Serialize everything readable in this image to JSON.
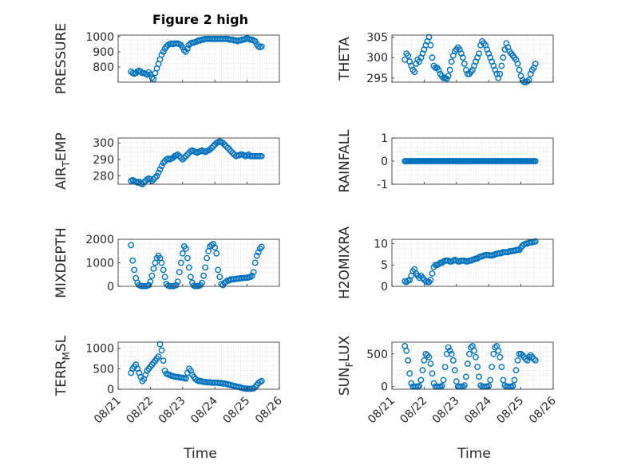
{
  "figure": {
    "title": "Figure 2 high"
  },
  "colors": {
    "marker": "#0072BD",
    "grid": "#d0d0d0",
    "axis": "#262626"
  },
  "chart_data": [
    {
      "type": "scatter",
      "ylabel": "PRESSURE",
      "ylim": [
        700,
        1010
      ],
      "yticks": [
        800,
        900,
        1000
      ],
      "xlim": [
        0,
        5
      ],
      "xticks": [
        "08/21",
        "08/22",
        "08/23",
        "08/24",
        "08/25",
        "08/26"
      ],
      "grid": true,
      "x": [
        0.4,
        0.45,
        0.5,
        0.55,
        0.6,
        0.65,
        0.7,
        0.75,
        0.8,
        0.85,
        0.9,
        0.95,
        1.0,
        1.05,
        1.1,
        1.15,
        1.2,
        1.25,
        1.3,
        1.35,
        1.4,
        1.45,
        1.5,
        1.55,
        1.6,
        1.65,
        1.7,
        1.75,
        1.8,
        1.85,
        1.9,
        1.95,
        2.0,
        2.05,
        2.1,
        2.15,
        2.2,
        2.25,
        2.3,
        2.35,
        2.4,
        2.45,
        2.5,
        2.55,
        2.6,
        2.65,
        2.7,
        2.75,
        2.8,
        2.85,
        2.9,
        2.95,
        3.0,
        3.05,
        3.1,
        3.15,
        3.2,
        3.25,
        3.3,
        3.35,
        3.4,
        3.45,
        3.5,
        3.55,
        3.6,
        3.65,
        3.7,
        3.75,
        3.8,
        3.85,
        3.9,
        3.95,
        4.0,
        4.05,
        4.1,
        4.15,
        4.2,
        4.25,
        4.3,
        4.35,
        4.4,
        4.45
      ],
      "y": [
        770,
        760,
        755,
        760,
        770,
        775,
        770,
        760,
        760,
        755,
        750,
        765,
        750,
        730,
        720,
        760,
        790,
        820,
        850,
        880,
        900,
        920,
        935,
        945,
        950,
        955,
        950,
        955,
        955,
        955,
        950,
        945,
        930,
        910,
        900,
        920,
        945,
        955,
        960,
        960,
        965,
        970,
        975,
        975,
        980,
        980,
        985,
        985,
        985,
        985,
        985,
        985,
        985,
        985,
        985,
        985,
        985,
        985,
        985,
        985,
        985,
        980,
        980,
        980,
        975,
        975,
        970,
        975,
        975,
        980,
        980,
        985,
        990,
        985,
        980,
        980,
        975,
        970,
        950,
        935,
        930,
        935
      ]
    },
    {
      "type": "scatter",
      "ylabel": "THETA",
      "ylim": [
        294,
        305.5
      ],
      "yticks": [
        295,
        300,
        305
      ],
      "xlim": [
        0,
        5
      ],
      "xticks": [
        "08/21",
        "08/22",
        "08/23",
        "08/24",
        "08/25",
        "08/26"
      ],
      "grid": true,
      "x": [
        0.4,
        0.45,
        0.5,
        0.55,
        0.6,
        0.65,
        0.7,
        0.75,
        0.8,
        0.85,
        0.9,
        0.95,
        1.0,
        1.05,
        1.1,
        1.15,
        1.2,
        1.25,
        1.3,
        1.35,
        1.4,
        1.45,
        1.5,
        1.55,
        1.6,
        1.65,
        1.7,
        1.75,
        1.8,
        1.85,
        1.9,
        1.95,
        2.0,
        2.05,
        2.1,
        2.15,
        2.2,
        2.25,
        2.3,
        2.35,
        2.4,
        2.45,
        2.5,
        2.55,
        2.6,
        2.65,
        2.7,
        2.75,
        2.8,
        2.85,
        2.9,
        2.95,
        3.0,
        3.05,
        3.1,
        3.15,
        3.2,
        3.25,
        3.3,
        3.35,
        3.4,
        3.45,
        3.5,
        3.55,
        3.6,
        3.65,
        3.7,
        3.75,
        3.8,
        3.85,
        3.9,
        3.95,
        4.0,
        4.05,
        4.1,
        4.15,
        4.2,
        4.25,
        4.3,
        4.35,
        4.4,
        4.45
      ],
      "y": [
        299.5,
        301,
        300.5,
        299,
        298,
        297,
        296.5,
        298.5,
        299.5,
        299,
        300,
        301,
        302,
        303,
        304,
        305,
        303,
        300,
        298,
        297.5,
        297.5,
        297,
        296,
        295.5,
        295,
        295,
        294.8,
        295.5,
        297,
        299,
        300.5,
        301.5,
        302,
        302.5,
        302,
        301,
        300,
        298.5,
        297,
        296,
        296,
        296.5,
        297,
        298,
        299,
        300,
        301,
        303,
        304,
        303.5,
        303,
        302,
        301,
        300,
        299,
        298,
        297,
        296,
        295,
        296,
        298,
        300,
        302,
        303.5,
        302.5,
        301.5,
        301,
        300.5,
        300,
        299.5,
        298.5,
        297,
        295.5,
        294.5,
        294,
        294,
        294.2,
        294.5,
        296,
        297,
        297.5,
        298.5
      ]
    },
    {
      "type": "scatter",
      "ylabel": "AIR_TEMP",
      "ylim": [
        275,
        303
      ],
      "yticks": [
        280,
        290,
        300
      ],
      "xlim": [
        0,
        5
      ],
      "xticks": [
        "08/21",
        "08/22",
        "08/23",
        "08/24",
        "08/25",
        "08/26"
      ],
      "grid": true,
      "x": [
        0.4,
        0.45,
        0.5,
        0.55,
        0.6,
        0.65,
        0.7,
        0.75,
        0.8,
        0.85,
        0.9,
        0.95,
        1.0,
        1.05,
        1.1,
        1.15,
        1.2,
        1.25,
        1.3,
        1.35,
        1.4,
        1.45,
        1.5,
        1.55,
        1.6,
        1.65,
        1.7,
        1.75,
        1.8,
        1.85,
        1.9,
        1.95,
        2.0,
        2.05,
        2.1,
        2.15,
        2.2,
        2.25,
        2.3,
        2.35,
        2.4,
        2.45,
        2.5,
        2.55,
        2.6,
        2.65,
        2.7,
        2.75,
        2.8,
        2.85,
        2.9,
        2.95,
        3.0,
        3.05,
        3.1,
        3.15,
        3.2,
        3.25,
        3.3,
        3.35,
        3.4,
        3.45,
        3.5,
        3.55,
        3.6,
        3.65,
        3.7,
        3.75,
        3.8,
        3.85,
        3.9,
        3.95,
        4.0,
        4.05,
        4.1,
        4.15,
        4.2,
        4.25,
        4.3,
        4.35,
        4.4,
        4.45
      ],
      "y": [
        277,
        277.5,
        277,
        276.5,
        276,
        276.5,
        275.5,
        275,
        276,
        277,
        278,
        278.5,
        278,
        277,
        278,
        279,
        280,
        282,
        284,
        286,
        288,
        289,
        290,
        290.5,
        290,
        290.5,
        291,
        292,
        292.5,
        293,
        292,
        291,
        290,
        291,
        292,
        293,
        294,
        295,
        295.5,
        295,
        294.5,
        294,
        294.5,
        295,
        295.5,
        295,
        294.5,
        295,
        295.5,
        296,
        297,
        298,
        299,
        300,
        300.5,
        301,
        300.5,
        300,
        299,
        298,
        297,
        296,
        295,
        294,
        293,
        292,
        292.5,
        292.5,
        293,
        293,
        292.5,
        292,
        292.5,
        293,
        292,
        292,
        292,
        292,
        292,
        292,
        292,
        292
      ]
    },
    {
      "type": "scatter",
      "ylabel": "RAINFALL",
      "ylim": [
        -1,
        1
      ],
      "yticks": [
        -1,
        0,
        1
      ],
      "xlim": [
        0,
        5
      ],
      "xticks": [
        "08/21",
        "08/22",
        "08/23",
        "08/24",
        "08/25",
        "08/26"
      ],
      "grid": true,
      "x_start": 0.4,
      "x_end": 4.45,
      "count": 100,
      "value": 0
    },
    {
      "type": "scatter",
      "ylabel": "MIXDEPTH",
      "ylim": [
        0,
        2000
      ],
      "yticks": [
        0,
        1000,
        2000
      ],
      "xlim": [
        0,
        5
      ],
      "xticks": [
        "08/21",
        "08/22",
        "08/23",
        "08/24",
        "08/25",
        "08/26"
      ],
      "grid": true,
      "x": [
        0.4,
        0.45,
        0.5,
        0.55,
        0.6,
        0.65,
        0.7,
        0.75,
        0.8,
        0.85,
        0.9,
        0.95,
        1.0,
        1.05,
        1.1,
        1.15,
        1.2,
        1.25,
        1.3,
        1.35,
        1.4,
        1.45,
        1.5,
        1.55,
        1.6,
        1.65,
        1.7,
        1.75,
        1.8,
        1.85,
        1.9,
        1.95,
        2.0,
        2.05,
        2.1,
        2.15,
        2.2,
        2.25,
        2.3,
        2.35,
        2.4,
        2.45,
        2.5,
        2.55,
        2.6,
        2.65,
        2.7,
        2.75,
        2.8,
        2.85,
        2.9,
        2.95,
        3.0,
        3.05,
        3.1,
        3.15,
        3.2,
        3.25,
        3.3,
        3.35,
        3.4,
        3.45,
        3.5,
        3.55,
        3.6,
        3.65,
        3.7,
        3.75,
        3.8,
        3.85,
        3.9,
        3.95,
        4.0,
        4.05,
        4.1,
        4.15,
        4.2,
        4.25,
        4.3,
        4.35,
        4.4,
        4.45
      ],
      "y": [
        1750,
        1100,
        700,
        350,
        150,
        50,
        20,
        10,
        10,
        10,
        20,
        50,
        200,
        450,
        750,
        1000,
        1200,
        1300,
        1200,
        1000,
        700,
        400,
        100,
        30,
        10,
        10,
        10,
        20,
        50,
        200,
        600,
        1000,
        1400,
        1700,
        1600,
        1200,
        800,
        400,
        150,
        30,
        10,
        10,
        20,
        50,
        150,
        450,
        800,
        1200,
        1500,
        1700,
        1750,
        1800,
        1650,
        1400,
        700,
        400,
        100,
        50,
        150,
        200,
        250,
        250,
        300,
        300,
        300,
        320,
        330,
        330,
        350,
        350,
        360,
        360,
        370,
        380,
        400,
        450,
        600,
        1000,
        1300,
        1450,
        1600,
        1680
      ]
    },
    {
      "type": "scatter",
      "ylabel": "H2OMIXRA",
      "ylim": [
        0,
        11
      ],
      "yticks": [
        0,
        5,
        10
      ],
      "xlim": [
        0,
        5
      ],
      "xticks": [
        "08/21",
        "08/22",
        "08/23",
        "08/24",
        "08/25",
        "08/26"
      ],
      "grid": true,
      "x": [
        0.4,
        0.45,
        0.5,
        0.55,
        0.6,
        0.65,
        0.7,
        0.75,
        0.8,
        0.85,
        0.9,
        0.95,
        1.0,
        1.05,
        1.1,
        1.15,
        1.2,
        1.25,
        1.3,
        1.35,
        1.4,
        1.45,
        1.5,
        1.55,
        1.6,
        1.65,
        1.7,
        1.75,
        1.8,
        1.85,
        1.9,
        1.95,
        2.0,
        2.05,
        2.1,
        2.15,
        2.2,
        2.25,
        2.3,
        2.35,
        2.4,
        2.45,
        2.5,
        2.55,
        2.6,
        2.65,
        2.7,
        2.75,
        2.8,
        2.85,
        2.9,
        2.95,
        3.0,
        3.05,
        3.1,
        3.15,
        3.2,
        3.25,
        3.3,
        3.35,
        3.4,
        3.45,
        3.5,
        3.55,
        3.6,
        3.65,
        3.7,
        3.75,
        3.8,
        3.85,
        3.9,
        3.95,
        4.0,
        4.05,
        4.1,
        4.15,
        4.2,
        4.25,
        4.3,
        4.35,
        4.4,
        4.45
      ],
      "y": [
        1.2,
        1.0,
        1.3,
        1.5,
        2.5,
        3.5,
        4.0,
        3.0,
        2.5,
        2.0,
        2.5,
        2.0,
        1.5,
        1.2,
        1.0,
        1.0,
        1.5,
        3.0,
        4.5,
        5.0,
        5.0,
        5.2,
        5.5,
        5.5,
        5.8,
        6.0,
        6.0,
        6.0,
        5.8,
        5.8,
        6.0,
        6.2,
        6.0,
        5.8,
        5.8,
        6.0,
        6.0,
        6.0,
        5.8,
        5.8,
        6.0,
        6.0,
        6.2,
        6.3,
        6.5,
        6.5,
        6.8,
        7.0,
        7.0,
        7.2,
        7.3,
        7.3,
        7.3,
        7.2,
        7.2,
        7.3,
        7.5,
        7.6,
        7.7,
        7.7,
        7.8,
        8.0,
        8.0,
        8.0,
        8.0,
        8.2,
        8.2,
        8.3,
        8.3,
        8.5,
        8.5,
        8.5,
        9.0,
        9.5,
        9.8,
        10.0,
        10.0,
        10.2,
        10.3,
        10.3,
        10.4,
        10.5
      ]
    },
    {
      "type": "scatter",
      "ylabel": "TERR_MSL",
      "ylim": [
        0,
        1150
      ],
      "yticks": [
        0,
        500,
        1000
      ],
      "xlim": [
        0,
        5
      ],
      "xticks": [
        "08/21",
        "08/22",
        "08/23",
        "08/24",
        "08/25",
        "08/26"
      ],
      "grid": true,
      "x": [
        0.4,
        0.45,
        0.5,
        0.55,
        0.6,
        0.65,
        0.7,
        0.75,
        0.8,
        0.85,
        0.9,
        0.95,
        1.0,
        1.05,
        1.1,
        1.15,
        1.2,
        1.25,
        1.3,
        1.35,
        1.4,
        1.45,
        1.5,
        1.55,
        1.6,
        1.65,
        1.7,
        1.75,
        1.8,
        1.85,
        1.9,
        1.95,
        2.0,
        2.05,
        2.1,
        2.15,
        2.2,
        2.25,
        2.3,
        2.35,
        2.4,
        2.45,
        2.5,
        2.55,
        2.6,
        2.65,
        2.7,
        2.75,
        2.8,
        2.85,
        2.9,
        2.95,
        3.0,
        3.05,
        3.1,
        3.15,
        3.2,
        3.25,
        3.3,
        3.35,
        3.4,
        3.45,
        3.5,
        3.55,
        3.6,
        3.65,
        3.7,
        3.75,
        3.8,
        3.85,
        3.9,
        3.95,
        4.0,
        4.05,
        4.1,
        4.15,
        4.2,
        4.25,
        4.3,
        4.35,
        4.4,
        4.45
      ],
      "y": [
        400,
        500,
        550,
        600,
        500,
        400,
        300,
        200,
        250,
        350,
        450,
        500,
        550,
        600,
        650,
        700,
        750,
        800,
        1100,
        950,
        700,
        450,
        380,
        360,
        350,
        330,
        320,
        310,
        300,
        300,
        290,
        280,
        280,
        270,
        260,
        400,
        500,
        450,
        350,
        300,
        250,
        220,
        200,
        200,
        190,
        180,
        180,
        170,
        170,
        170,
        160,
        160,
        160,
        160,
        160,
        150,
        150,
        140,
        140,
        130,
        120,
        110,
        100,
        90,
        80,
        70,
        60,
        50,
        40,
        30,
        20,
        15,
        10,
        10,
        10,
        15,
        20,
        50,
        100,
        150,
        180,
        200
      ]
    },
    {
      "type": "scatter",
      "ylabel": "SUN_FLUX",
      "ylim": [
        -40,
        680
      ],
      "yticks": [
        0,
        500
      ],
      "xlim": [
        0,
        5
      ],
      "xticks": [
        "08/21",
        "08/22",
        "08/23",
        "08/24",
        "08/25",
        "08/26"
      ],
      "grid": true,
      "x": [
        0.4,
        0.45,
        0.5,
        0.55,
        0.6,
        0.65,
        0.7,
        0.75,
        0.8,
        0.85,
        0.9,
        0.95,
        1.0,
        1.05,
        1.1,
        1.15,
        1.2,
        1.25,
        1.3,
        1.35,
        1.4,
        1.45,
        1.5,
        1.55,
        1.6,
        1.65,
        1.7,
        1.75,
        1.8,
        1.85,
        1.9,
        1.95,
        2.0,
        2.05,
        2.1,
        2.15,
        2.2,
        2.25,
        2.3,
        2.35,
        2.4,
        2.45,
        2.5,
        2.55,
        2.6,
        2.65,
        2.7,
        2.75,
        2.8,
        2.85,
        2.9,
        2.95,
        3.0,
        3.05,
        3.1,
        3.15,
        3.2,
        3.25,
        3.3,
        3.35,
        3.4,
        3.45,
        3.5,
        3.55,
        3.6,
        3.65,
        3.7,
        3.75,
        3.8,
        3.85,
        3.9,
        3.95,
        4.0,
        4.05,
        4.1,
        4.15,
        4.2,
        4.25,
        4.3,
        4.35,
        4.4,
        4.45
      ],
      "y": [
        620,
        550,
        400,
        200,
        50,
        0,
        0,
        0,
        0,
        10,
        100,
        250,
        400,
        500,
        480,
        450,
        350,
        200,
        50,
        0,
        0,
        0,
        0,
        10,
        100,
        300,
        500,
        600,
        550,
        500,
        400,
        250,
        80,
        0,
        0,
        0,
        0,
        20,
        150,
        350,
        500,
        600,
        620,
        550,
        450,
        300,
        150,
        20,
        0,
        0,
        0,
        0,
        10,
        100,
        300,
        500,
        600,
        620,
        550,
        450,
        300,
        100,
        20,
        0,
        0,
        0,
        0,
        10,
        100,
        250,
        400,
        500,
        500,
        480,
        450,
        420,
        400,
        450,
        480,
        450,
        420,
        400
      ]
    }
  ],
  "x_axis_label": "Time"
}
